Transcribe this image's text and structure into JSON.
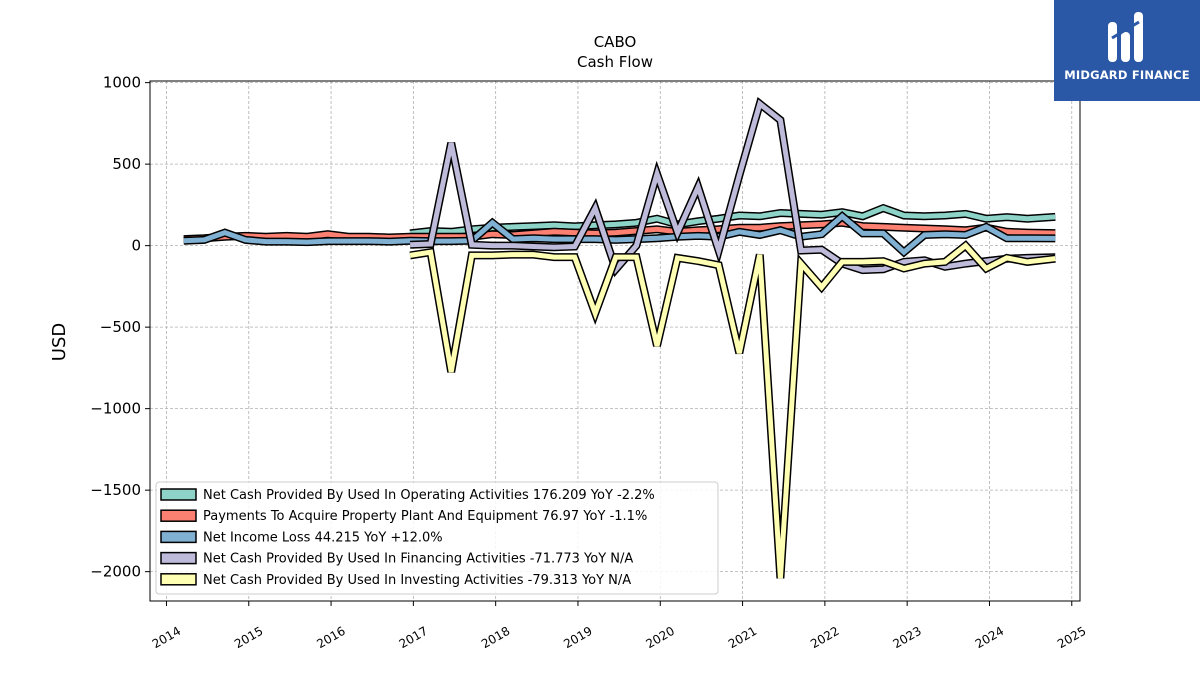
{
  "brand": {
    "name": "MIDGARD FINANCE",
    "bg_color": "#2a57a6"
  },
  "chart_data": {
    "type": "line",
    "title": "CABO",
    "subtitle": "Cash Flow",
    "ylabel": "USD",
    "xlabel": "",
    "xlim": [
      2013.8,
      2025.1
    ],
    "ylim": [
      -2180,
      1010
    ],
    "x_ticks": [
      2014,
      2015,
      2016,
      2017,
      2018,
      2019,
      2020,
      2021,
      2022,
      2023,
      2024,
      2025
    ],
    "y_ticks": [
      1000,
      500,
      0,
      -500,
      -1000,
      -1500,
      -2000
    ],
    "y_tick_labels": [
      "1000",
      "500",
      "0",
      "−500",
      "−1000",
      "−1500",
      "−2000"
    ],
    "grid": true,
    "legend_position": "lower-left",
    "series": [
      {
        "name": "Net Cash Provided By Used In Operating Activities  176.209 YoY -2.2%",
        "color": "#8dd3c7",
        "points": [
          [
            2016.96,
            75
          ],
          [
            2017.21,
            90
          ],
          [
            2017.46,
            85
          ],
          [
            2017.71,
            100
          ],
          [
            2017.96,
            110
          ],
          [
            2018.21,
            115
          ],
          [
            2018.46,
            120
          ],
          [
            2018.71,
            125
          ],
          [
            2018.96,
            118
          ],
          [
            2019.21,
            125
          ],
          [
            2019.46,
            130
          ],
          [
            2019.71,
            140
          ],
          [
            2019.96,
            165
          ],
          [
            2020.21,
            130
          ],
          [
            2020.46,
            150
          ],
          [
            2020.71,
            165
          ],
          [
            2020.96,
            185
          ],
          [
            2021.21,
            180
          ],
          [
            2021.46,
            200
          ],
          [
            2021.71,
            195
          ],
          [
            2021.96,
            190
          ],
          [
            2022.21,
            205
          ],
          [
            2022.46,
            180
          ],
          [
            2022.71,
            230
          ],
          [
            2022.96,
            185
          ],
          [
            2023.21,
            180
          ],
          [
            2023.46,
            185
          ],
          [
            2023.71,
            195
          ],
          [
            2023.96,
            165
          ],
          [
            2024.21,
            175
          ],
          [
            2024.46,
            165
          ],
          [
            2024.8,
            176.209
          ]
        ]
      },
      {
        "name": "Payments To Acquire Property Plant And Equipment  76.97 YoY -1.1%",
        "color": "#fb8072",
        "points": [
          [
            2014.21,
            40
          ],
          [
            2014.46,
            45
          ],
          [
            2014.71,
            55
          ],
          [
            2014.96,
            60
          ],
          [
            2015.21,
            55
          ],
          [
            2015.46,
            60
          ],
          [
            2015.71,
            55
          ],
          [
            2015.96,
            70
          ],
          [
            2016.21,
            55
          ],
          [
            2016.46,
            55
          ],
          [
            2016.71,
            50
          ],
          [
            2016.96,
            55
          ],
          [
            2017.21,
            55
          ],
          [
            2017.46,
            55
          ],
          [
            2017.71,
            55
          ],
          [
            2017.96,
            70
          ],
          [
            2018.21,
            65
          ],
          [
            2018.46,
            75
          ],
          [
            2018.71,
            85
          ],
          [
            2018.96,
            80
          ],
          [
            2019.21,
            75
          ],
          [
            2019.46,
            80
          ],
          [
            2019.71,
            90
          ],
          [
            2019.96,
            100
          ],
          [
            2020.21,
            85
          ],
          [
            2020.46,
            95
          ],
          [
            2020.71,
            100
          ],
          [
            2020.96,
            110
          ],
          [
            2021.21,
            110
          ],
          [
            2021.46,
            120
          ],
          [
            2021.71,
            125
          ],
          [
            2021.96,
            130
          ],
          [
            2022.21,
            140
          ],
          [
            2022.46,
            120
          ],
          [
            2022.71,
            115
          ],
          [
            2022.96,
            110
          ],
          [
            2023.21,
            105
          ],
          [
            2023.46,
            100
          ],
          [
            2023.71,
            95
          ],
          [
            2023.96,
            110
          ],
          [
            2024.21,
            85
          ],
          [
            2024.46,
            80
          ],
          [
            2024.8,
            76.97
          ]
        ]
      },
      {
        "name": "Net Income Loss  44.215 YoY +12.0%",
        "color": "#80b1d3",
        "points": [
          [
            2014.21,
            30
          ],
          [
            2014.46,
            35
          ],
          [
            2014.71,
            80
          ],
          [
            2014.96,
            35
          ],
          [
            2015.21,
            25
          ],
          [
            2015.46,
            25
          ],
          [
            2015.71,
            22
          ],
          [
            2015.96,
            28
          ],
          [
            2016.21,
            28
          ],
          [
            2016.46,
            28
          ],
          [
            2016.71,
            25
          ],
          [
            2016.96,
            30
          ],
          [
            2017.21,
            28
          ],
          [
            2017.46,
            28
          ],
          [
            2017.71,
            30
          ],
          [
            2017.96,
            140
          ],
          [
            2018.21,
            40
          ],
          [
            2018.46,
            45
          ],
          [
            2018.71,
            40
          ],
          [
            2018.96,
            40
          ],
          [
            2019.21,
            40
          ],
          [
            2019.46,
            35
          ],
          [
            2019.71,
            40
          ],
          [
            2019.96,
            45
          ],
          [
            2020.21,
            55
          ],
          [
            2020.46,
            60
          ],
          [
            2020.71,
            55
          ],
          [
            2020.96,
            85
          ],
          [
            2021.21,
            65
          ],
          [
            2021.46,
            95
          ],
          [
            2021.71,
            55
          ],
          [
            2021.96,
            70
          ],
          [
            2022.21,
            180
          ],
          [
            2022.46,
            75
          ],
          [
            2022.71,
            75
          ],
          [
            2022.96,
            -40
          ],
          [
            2023.21,
            65
          ],
          [
            2023.46,
            70
          ],
          [
            2023.71,
            65
          ],
          [
            2023.96,
            115
          ],
          [
            2024.21,
            45
          ],
          [
            2024.46,
            45
          ],
          [
            2024.8,
            44.215
          ]
        ]
      },
      {
        "name": "Net Cash Provided By Used In Financing Activities  -71.773 YoY N/A",
        "color": "#bebada",
        "points": [
          [
            2016.96,
            5
          ],
          [
            2017.21,
            10
          ],
          [
            2017.46,
            630
          ],
          [
            2017.71,
            5
          ],
          [
            2017.96,
            0
          ],
          [
            2018.21,
            0
          ],
          [
            2018.46,
            -5
          ],
          [
            2018.71,
            -10
          ],
          [
            2018.96,
            -5
          ],
          [
            2019.21,
            230
          ],
          [
            2019.46,
            -145
          ],
          [
            2019.71,
            0
          ],
          [
            2019.96,
            440
          ],
          [
            2020.21,
            80
          ],
          [
            2020.46,
            360
          ],
          [
            2020.71,
            -30
          ],
          [
            2020.96,
            430
          ],
          [
            2021.21,
            870
          ],
          [
            2021.46,
            770
          ],
          [
            2021.71,
            -30
          ],
          [
            2021.96,
            -25
          ],
          [
            2022.21,
            -110
          ],
          [
            2022.46,
            -150
          ],
          [
            2022.71,
            -145
          ],
          [
            2022.96,
            -100
          ],
          [
            2023.21,
            -90
          ],
          [
            2023.46,
            -130
          ],
          [
            2023.71,
            -110
          ],
          [
            2023.96,
            -95
          ],
          [
            2024.21,
            -80
          ],
          [
            2024.46,
            -75
          ],
          [
            2024.8,
            -71.773
          ]
        ]
      },
      {
        "name": "Net Cash Provided By Used In Investing Activities  -79.313 YoY N/A",
        "color": "#ffffb3",
        "points": [
          [
            2016.96,
            -60
          ],
          [
            2017.21,
            -40
          ],
          [
            2017.46,
            -775
          ],
          [
            2017.71,
            -60
          ],
          [
            2017.96,
            -60
          ],
          [
            2018.21,
            -55
          ],
          [
            2018.46,
            -55
          ],
          [
            2018.71,
            -70
          ],
          [
            2018.96,
            -70
          ],
          [
            2019.21,
            -415
          ],
          [
            2019.46,
            -70
          ],
          [
            2019.71,
            -70
          ],
          [
            2019.96,
            -615
          ],
          [
            2020.21,
            -75
          ],
          [
            2020.46,
            -95
          ],
          [
            2020.71,
            -120
          ],
          [
            2020.96,
            -660
          ],
          [
            2021.21,
            -55
          ],
          [
            2021.46,
            -2040
          ],
          [
            2021.71,
            -110
          ],
          [
            2021.96,
            -255
          ],
          [
            2022.21,
            -100
          ],
          [
            2022.46,
            -100
          ],
          [
            2022.71,
            -95
          ],
          [
            2022.96,
            -140
          ],
          [
            2023.21,
            -110
          ],
          [
            2023.46,
            -100
          ],
          [
            2023.71,
            0
          ],
          [
            2023.96,
            -140
          ],
          [
            2024.21,
            -75
          ],
          [
            2024.46,
            -100
          ],
          [
            2024.8,
            -79.313
          ]
        ]
      }
    ]
  }
}
